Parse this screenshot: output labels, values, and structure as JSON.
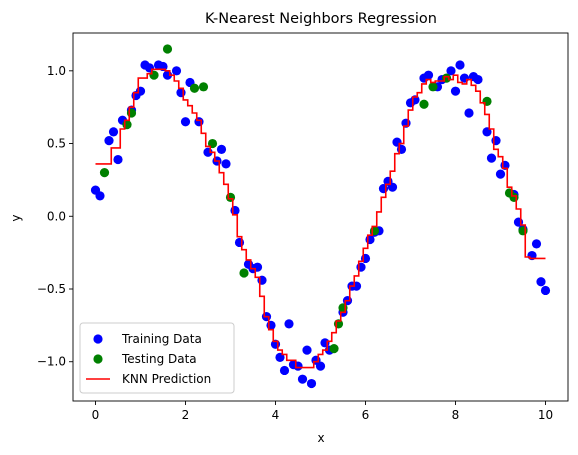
{
  "chart_data": {
    "type": "scatter",
    "title": "K-Nearest Neighbors Regression",
    "xlabel": "x",
    "ylabel": "y",
    "xlim": [
      -0.5,
      10.5
    ],
    "ylim": [
      -1.27,
      1.26
    ],
    "xticks": [
      0,
      2,
      4,
      6,
      8,
      10
    ],
    "xtick_labels": [
      "0",
      "2",
      "4",
      "6",
      "8",
      "10"
    ],
    "yticks": [
      -1.0,
      -0.5,
      0.0,
      0.5,
      1.0
    ],
    "ytick_labels": [
      "−1.0",
      "−0.5",
      "0.0",
      "0.5",
      "1.0"
    ],
    "grid": false,
    "legend_position": "lower-left",
    "series": [
      {
        "name": "Training Data",
        "kind": "scatter",
        "color": "#0000ff",
        "points": [
          [
            0.0,
            0.18
          ],
          [
            0.1,
            0.14
          ],
          [
            0.3,
            0.52
          ],
          [
            0.4,
            0.58
          ],
          [
            0.5,
            0.39
          ],
          [
            0.6,
            0.66
          ],
          [
            0.8,
            0.73
          ],
          [
            0.9,
            0.83
          ],
          [
            1.0,
            0.86
          ],
          [
            1.1,
            1.04
          ],
          [
            1.2,
            1.02
          ],
          [
            1.4,
            1.04
          ],
          [
            1.5,
            1.03
          ],
          [
            1.6,
            0.97
          ],
          [
            1.8,
            1.0
          ],
          [
            1.9,
            0.85
          ],
          [
            2.0,
            0.65
          ],
          [
            2.1,
            0.92
          ],
          [
            2.3,
            0.65
          ],
          [
            2.5,
            0.44
          ],
          [
            2.7,
            0.38
          ],
          [
            2.8,
            0.46
          ],
          [
            2.9,
            0.36
          ],
          [
            3.1,
            0.04
          ],
          [
            3.2,
            -0.18
          ],
          [
            3.4,
            -0.33
          ],
          [
            3.5,
            -0.36
          ],
          [
            3.6,
            -0.35
          ],
          [
            3.7,
            -0.44
          ],
          [
            3.8,
            -0.69
          ],
          [
            3.9,
            -0.75
          ],
          [
            4.0,
            -0.88
          ],
          [
            4.1,
            -0.97
          ],
          [
            4.2,
            -1.06
          ],
          [
            4.3,
            -0.74
          ],
          [
            4.4,
            -1.02
          ],
          [
            4.5,
            -1.03
          ],
          [
            4.6,
            -1.12
          ],
          [
            4.7,
            -0.92
          ],
          [
            4.8,
            -1.15
          ],
          [
            4.9,
            -0.99
          ],
          [
            5.0,
            -1.03
          ],
          [
            5.1,
            -0.87
          ],
          [
            5.2,
            -0.92
          ],
          [
            5.5,
            -0.66
          ],
          [
            5.6,
            -0.58
          ],
          [
            5.7,
            -0.48
          ],
          [
            5.8,
            -0.48
          ],
          [
            5.9,
            -0.35
          ],
          [
            6.0,
            -0.29
          ],
          [
            6.1,
            -0.16
          ],
          [
            6.2,
            -0.11
          ],
          [
            6.3,
            -0.1
          ],
          [
            6.4,
            0.19
          ],
          [
            6.5,
            0.24
          ],
          [
            6.6,
            0.2
          ],
          [
            6.7,
            0.51
          ],
          [
            6.8,
            0.46
          ],
          [
            6.9,
            0.64
          ],
          [
            7.0,
            0.78
          ],
          [
            7.1,
            0.8
          ],
          [
            7.3,
            0.95
          ],
          [
            7.4,
            0.97
          ],
          [
            7.6,
            0.89
          ],
          [
            7.7,
            0.94
          ],
          [
            7.9,
            1.0
          ],
          [
            8.0,
            0.86
          ],
          [
            8.1,
            1.04
          ],
          [
            8.2,
            0.95
          ],
          [
            8.3,
            0.71
          ],
          [
            8.4,
            0.96
          ],
          [
            8.5,
            0.94
          ],
          [
            8.7,
            0.58
          ],
          [
            8.8,
            0.4
          ],
          [
            8.9,
            0.52
          ],
          [
            9.0,
            0.29
          ],
          [
            9.1,
            0.35
          ],
          [
            9.3,
            0.15
          ],
          [
            9.4,
            -0.04
          ],
          [
            9.5,
            -0.09
          ],
          [
            9.7,
            -0.27
          ],
          [
            9.8,
            -0.19
          ],
          [
            9.9,
            -0.45
          ],
          [
            10.0,
            -0.51
          ]
        ]
      },
      {
        "name": "Testing Data",
        "kind": "scatter",
        "color": "#008000",
        "points": [
          [
            0.2,
            0.3
          ],
          [
            0.7,
            0.63
          ],
          [
            0.8,
            0.71
          ],
          [
            1.3,
            0.97
          ],
          [
            1.6,
            1.15
          ],
          [
            2.2,
            0.88
          ],
          [
            2.4,
            0.89
          ],
          [
            2.6,
            0.5
          ],
          [
            3.0,
            0.13
          ],
          [
            3.3,
            -0.39
          ],
          [
            5.3,
            -0.91
          ],
          [
            5.4,
            -0.74
          ],
          [
            5.5,
            -0.63
          ],
          [
            6.2,
            -0.1
          ],
          [
            7.3,
            0.77
          ],
          [
            7.5,
            0.89
          ],
          [
            7.8,
            0.95
          ],
          [
            8.7,
            0.79
          ],
          [
            9.2,
            0.16
          ],
          [
            9.3,
            0.13
          ],
          [
            9.5,
            -0.1
          ]
        ]
      },
      {
        "name": "KNN Prediction",
        "kind": "step-line",
        "color": "#ff0000",
        "x": [
          0.0,
          0.1,
          0.2,
          0.3,
          0.4,
          0.5,
          0.6,
          0.7,
          0.8,
          0.9,
          1.0,
          1.1,
          1.2,
          1.3,
          1.4,
          1.5,
          1.6,
          1.7,
          1.8,
          1.9,
          2.0,
          2.1,
          2.2,
          2.3,
          2.4,
          2.5,
          2.6,
          2.7,
          2.8,
          2.9,
          3.0,
          3.1,
          3.2,
          3.3,
          3.4,
          3.5,
          3.6,
          3.7,
          3.8,
          3.9,
          4.0,
          4.1,
          4.2,
          4.3,
          4.4,
          4.5,
          4.6,
          4.7,
          4.8,
          4.9,
          5.0,
          5.1,
          5.2,
          5.3,
          5.4,
          5.5,
          5.6,
          5.7,
          5.8,
          5.9,
          6.0,
          6.1,
          6.2,
          6.3,
          6.4,
          6.5,
          6.6,
          6.7,
          6.8,
          6.9,
          7.0,
          7.1,
          7.2,
          7.3,
          7.4,
          7.5,
          7.6,
          7.7,
          7.8,
          7.9,
          8.0,
          8.1,
          8.2,
          8.3,
          8.4,
          8.5,
          8.6,
          8.7,
          8.8,
          8.9,
          9.0,
          9.1,
          9.2,
          9.3,
          9.4,
          9.5,
          9.6,
          9.7,
          9.8,
          9.9,
          10.0
        ],
        "values": [
          0.36,
          0.36,
          0.36,
          0.36,
          0.47,
          0.47,
          0.6,
          0.66,
          0.75,
          0.85,
          0.95,
          0.95,
          0.98,
          1.01,
          1.01,
          1.01,
          1.0,
          0.97,
          0.93,
          0.88,
          0.8,
          0.76,
          0.71,
          0.66,
          0.57,
          0.48,
          0.44,
          0.38,
          0.3,
          0.22,
          0.12,
          0.01,
          -0.14,
          -0.23,
          -0.3,
          -0.36,
          -0.42,
          -0.55,
          -0.69,
          -0.78,
          -0.86,
          -0.92,
          -0.95,
          -0.99,
          -0.99,
          -1.04,
          -1.04,
          -1.04,
          -1.04,
          -1.0,
          -0.95,
          -0.92,
          -0.86,
          -0.8,
          -0.72,
          -0.66,
          -0.58,
          -0.48,
          -0.41,
          -0.31,
          -0.22,
          -0.13,
          -0.07,
          0.03,
          0.13,
          0.22,
          0.31,
          0.43,
          0.5,
          0.62,
          0.73,
          0.82,
          0.85,
          0.91,
          0.94,
          0.92,
          0.93,
          0.93,
          0.96,
          0.94,
          0.97,
          0.92,
          0.91,
          0.94,
          0.9,
          0.86,
          0.78,
          0.7,
          0.6,
          0.46,
          0.41,
          0.33,
          0.2,
          0.14,
          0.05,
          -0.06,
          -0.28,
          -0.29,
          -0.29,
          -0.29,
          -0.29
        ]
      }
    ]
  }
}
